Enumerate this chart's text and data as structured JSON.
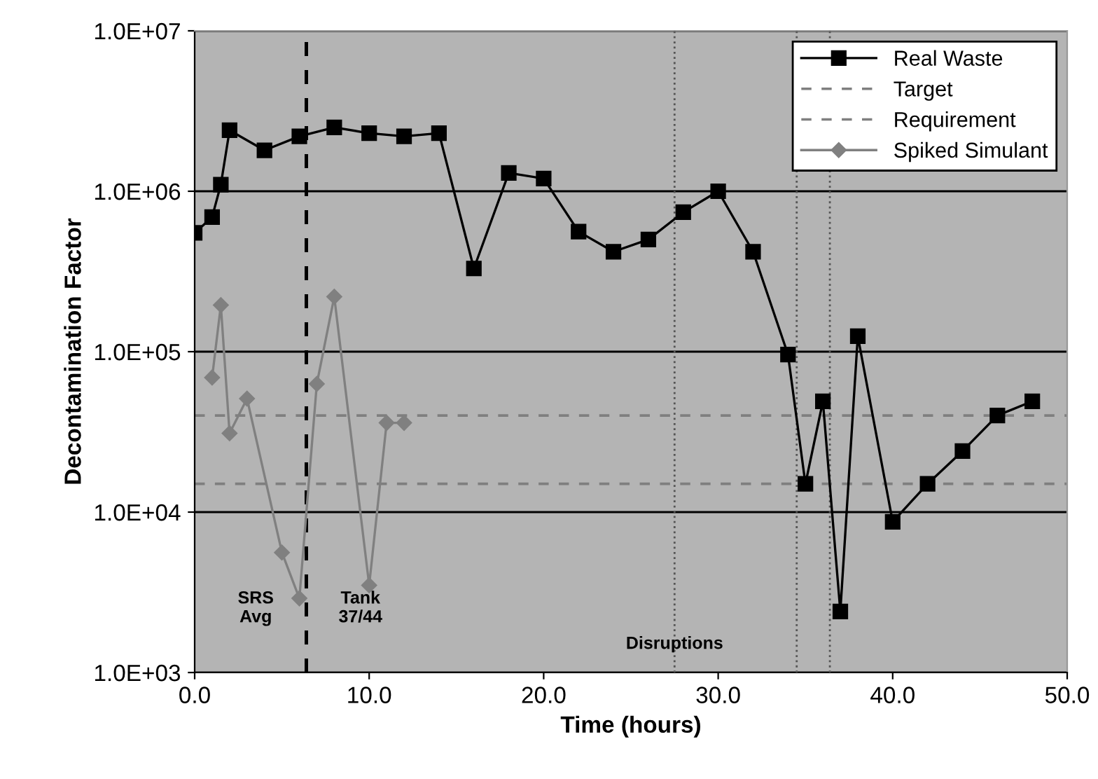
{
  "chart_data": {
    "type": "line",
    "xlabel": "Time (hours)",
    "ylabel": "Decontamination Factor",
    "log": "y",
    "xlim": [
      0,
      50
    ],
    "xticks": [
      {
        "value": 0,
        "label": "0.0"
      },
      {
        "value": 10,
        "label": "10.0"
      },
      {
        "value": 20,
        "label": "20.0"
      },
      {
        "value": 30,
        "label": "30.0"
      },
      {
        "value": 40,
        "label": "40.0"
      },
      {
        "value": 50,
        "label": "50.0"
      }
    ],
    "ylim": [
      1000,
      10000000
    ],
    "yticks": [
      {
        "value": 1000,
        "label": "1.0E+03"
      },
      {
        "value": 10000,
        "label": "1.0E+04"
      },
      {
        "value": 100000,
        "label": "1.0E+05"
      },
      {
        "value": 1000000,
        "label": "1.0E+06"
      },
      {
        "value": 10000000,
        "label": "1.0E+07"
      }
    ],
    "grid": "y",
    "legend": "top right",
    "line_style": "solid",
    "series": [
      {
        "name": "Real Waste",
        "color": "#000000",
        "marker": "square",
        "x": [
          0,
          1,
          1.5,
          2,
          4,
          6,
          8,
          10,
          12,
          14,
          16,
          18,
          20,
          22,
          24,
          26,
          28,
          30,
          32,
          34,
          35,
          36,
          37,
          38,
          40,
          42,
          44,
          46,
          48
        ],
        "values": [
          550000,
          690000,
          1100000,
          2400000,
          1800000,
          2200000,
          2500000,
          2300000,
          2200000,
          2300000,
          330000,
          1300000,
          1200000,
          560000,
          420000,
          500000,
          740000,
          1000000,
          420000,
          96000,
          15000,
          49000,
          2400,
          125000,
          8700,
          15000,
          24000,
          40000,
          49000
        ]
      },
      {
        "name": "Spiked Simulant",
        "color": "#808080",
        "marker": "diamond",
        "x": [
          1,
          1.5,
          2,
          3,
          5,
          6,
          7,
          8,
          10,
          11,
          12
        ],
        "values": [
          69000,
          195000,
          31000,
          51000,
          5600,
          2900,
          63000,
          220000,
          3500,
          36000,
          36000
        ]
      }
    ],
    "ref_lines": [
      {
        "axis": "y",
        "value": 40000,
        "label": "Target",
        "color": "#7f7f7f",
        "line_style": "dashed"
      },
      {
        "axis": "y",
        "value": 15000,
        "label": "Requirement",
        "color": "#7f7f7f",
        "line_style": "dashed"
      },
      {
        "axis": "x",
        "value": 6.4,
        "color": "#000000",
        "line_style": "dashed"
      },
      {
        "axis": "x",
        "value": 27.5,
        "color": "#555555",
        "line_style": "dotted"
      },
      {
        "axis": "x",
        "value": 34.5,
        "color": "#555555",
        "line_style": "dotted"
      },
      {
        "axis": "x",
        "value": 36.4,
        "color": "#555555",
        "line_style": "dotted"
      }
    ],
    "annotations": [
      "SRS\nAvg",
      "Tank\n37/44",
      {
        "text": "Disruptions",
        "x": 27.5,
        "y": 1500
      }
    ]
  }
}
